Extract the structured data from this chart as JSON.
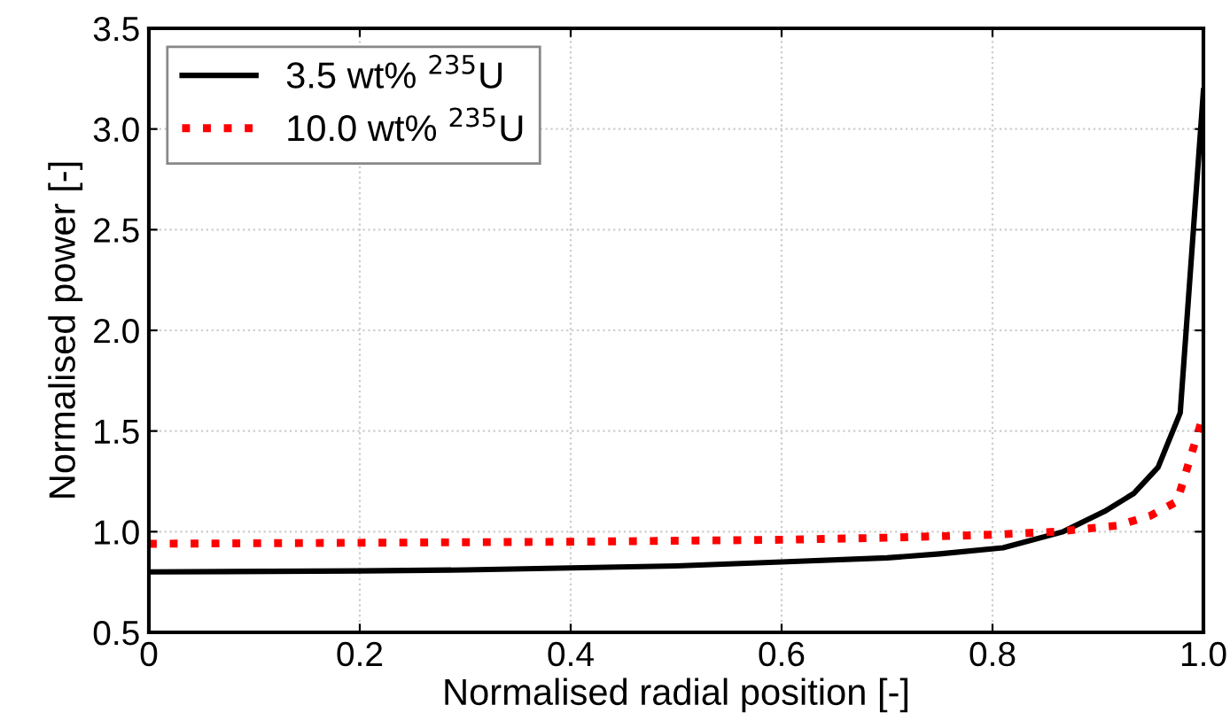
{
  "chart_data": {
    "type": "line",
    "xlabel": "Normalised radial position [-]",
    "ylabel": "Normalised power [-]",
    "xlim": [
      0,
      1.0
    ],
    "xticks": [
      0,
      0.2,
      0.4,
      0.6,
      0.8,
      {
        "value": 1.0,
        "label": "1.0"
      }
    ],
    "ylim": [
      0.5,
      3.5
    ],
    "yticks": [
      0.5,
      {
        "value": 1.0,
        "label": "1.0"
      },
      1.5,
      {
        "value": 2.0,
        "label": "2.0"
      },
      2.5,
      {
        "value": 3.0,
        "label": "3.0"
      },
      3.5
    ],
    "grid": true,
    "legend": "top left",
    "series": [
      {
        "name": "3.5 wt% $^{235}$U",
        "color": "#000000",
        "line_style": "solid",
        "x": [
          0,
          0.2,
          0.3,
          0.4,
          0.5,
          0.6,
          0.7,
          0.75,
          0.81,
          0.867,
          0.906,
          0.934,
          0.957,
          0.978,
          1.0
        ],
        "values": [
          0.8,
          0.805,
          0.81,
          0.82,
          0.83,
          0.85,
          0.87,
          0.89,
          0.92,
          1.0,
          1.1,
          1.19,
          1.32,
          1.59,
          3.19
        ]
      },
      {
        "name": "10.0 wt% $^{235}$U",
        "color": "#ff0000",
        "line_style": "dotted",
        "x": [
          0,
          0.2,
          0.4,
          0.6,
          0.7,
          0.8,
          0.86,
          0.918,
          0.95,
          0.975,
          1.0
        ],
        "values": [
          0.94,
          0.945,
          0.95,
          0.96,
          0.97,
          0.985,
          1.0,
          1.03,
          1.08,
          1.15,
          1.58
        ]
      }
    ]
  }
}
